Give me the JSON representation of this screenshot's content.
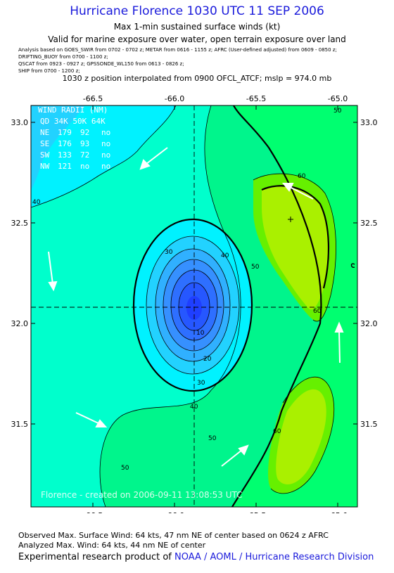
{
  "header": {
    "title": "Hurricane Florence 1030 UTC 11 SEP 2006",
    "subtitle": "Max 1-min sustained surface winds (kt)",
    "valid": "Valid for marine exposure over water, open terrain exposure over land"
  },
  "sources": [
    "Analysis based on  GOES_SWIR from 0702 - 0702 z;  METAR from 0616 - 1155 z;  AFRC (User-defined adjusted) from 0609 - 0850 z;",
    "DRIFTING_BUOY from 0700 - 1100 z;",
    "QSCAT from 0923 - 0927 z;  GPSSONDE_WL150 from 0613 - 0826 z;",
    "SHIP from 0700 - 1200 z;"
  ],
  "interpolation_note": "1030 z position interpolated from 0900 OFCL_ATCF; mslp = 974.0 mb",
  "map": {
    "lon_ticks": [
      "-66.5",
      "-66.0",
      "-65.5",
      "-65.0"
    ],
    "lat_ticks": [
      "33.0",
      "32.5",
      "32.0",
      "31.5"
    ],
    "contour_labels": [
      "10",
      "20",
      "30",
      "40",
      "50",
      "60"
    ],
    "wind_radii": {
      "header": "QD 34K 50K 64K",
      "title": "WIND RADII (NM)",
      "rows": [
        {
          "q": "NE",
          "r34": "179",
          "r50": "92",
          "r64": "no"
        },
        {
          "q": "SE",
          "r34": "176",
          "r50": "93",
          "r64": "no"
        },
        {
          "q": "SW",
          "r34": "133",
          "r50": "72",
          "r64": "no"
        },
        {
          "q": "NW",
          "r34": "121",
          "r50": "no",
          "r64": "no"
        }
      ]
    },
    "watermark": "Florence - created on 2006-09-11 13:08:53 UTC",
    "center": {
      "lon": -65.84,
      "lat": 32.08
    },
    "max_wind_marker": {
      "lon": -65.26,
      "lat": 32.52
    },
    "colors": {
      "c10": "#1f3fff",
      "c15": "#2657ff",
      "c20": "#2e6fff",
      "c25": "#3690ff",
      "c30": "#30b0ff",
      "c35": "#22d2ff",
      "c40": "#00f2ff",
      "c45": "#00ffcc",
      "c50": "#00f58c",
      "c55": "#00ff70",
      "c60": "#66f000",
      "c65": "#aaf000",
      "arrow": "#ffffff"
    }
  },
  "footer": {
    "observed": "Observed Max. Surface Wind: 64 kts, 47 nm NE of center based on 0624 z AFRC",
    "analyzed": "Analyzed Max. Wind: 64 kts, 44 nm NE of center",
    "research_prefix": "Experimental research product of",
    "research_org": "NOAA / AOML / Hurricane Research Division"
  }
}
